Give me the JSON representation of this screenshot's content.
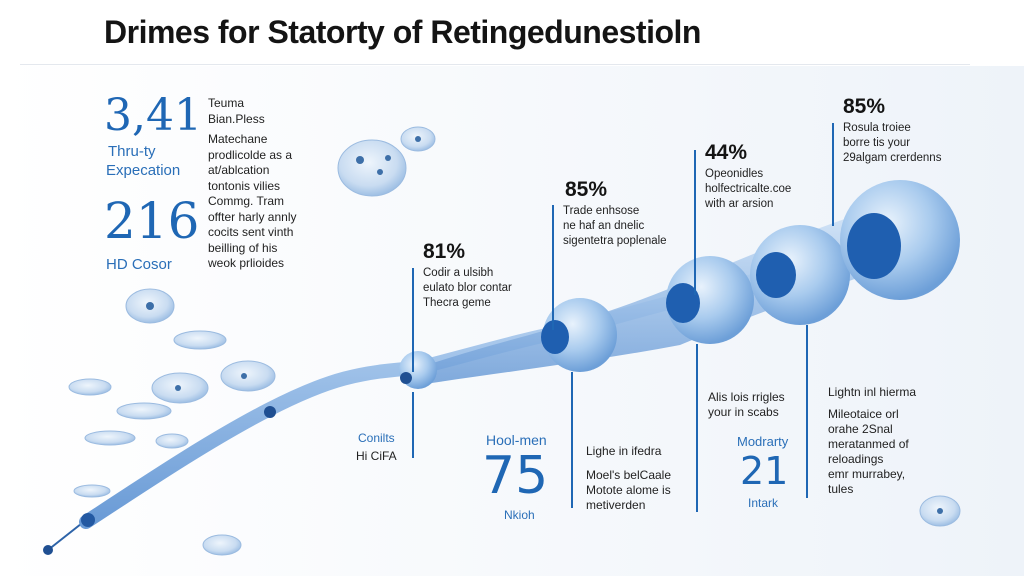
{
  "title": "Drimes for Statorty of Retingedunestioln",
  "left_panel": {
    "stat1_value": "3,41",
    "stat1_label1": "Thru-ty",
    "stat1_label2": "Expecation",
    "stat2_value": "216",
    "stat2_label": "HD Cosor",
    "notes": [
      "Teuma",
      "Bian.Pless",
      "Matechane",
      "prodlicolde as a",
      "at/ablcation",
      "tontonis vilies",
      "Commg. Tram",
      "offter harly annly",
      "cocits sent vinth",
      "beilling of his",
      "weok prlioides"
    ]
  },
  "callouts": [
    {
      "pct": "81%",
      "lines": [
        "Codir a ulsibh",
        "eulato blor contar",
        "Thecra geme"
      ]
    },
    {
      "pct": "85%",
      "lines": [
        "Trade enhsose",
        "ne haf an dnelic",
        "sigentetra poplenale"
      ]
    },
    {
      "pct": "44%",
      "lines": [
        "Opeonidles",
        "holfectricalte.coe",
        "with ar arsion"
      ]
    },
    {
      "pct": "85%",
      "lines": [
        "Rosula troiee",
        "borre tis your",
        "29algam crerdenns"
      ]
    }
  ],
  "bottom": {
    "b1_label1": "Conilts",
    "b1_label2": "Hi CiFA",
    "b2_label": "Hool-men",
    "b2_value": "75",
    "b2_sub": "Nkioh",
    "b3_lines": [
      "Lighe in ifedra",
      "Moel's belCaale",
      "Motote alome is",
      "metiverden"
    ],
    "b4_lines": [
      "Alis lois rrigles",
      "your in scabs"
    ],
    "b5_label": "Modrarty",
    "b5_value": "21",
    "b5_sub": "Intark",
    "b6_lines": [
      "Lightn inl hierma",
      "Mileotaice orl",
      "orahe 2Snal",
      "meratanmed of",
      "reloadings",
      "emr murrabey,",
      "tules"
    ]
  },
  "colors": {
    "accent": "#1f67b4",
    "tube": "#9fc2e8",
    "tube_dark": "#5b8fcf",
    "node_fill": "#1f5fb0"
  }
}
